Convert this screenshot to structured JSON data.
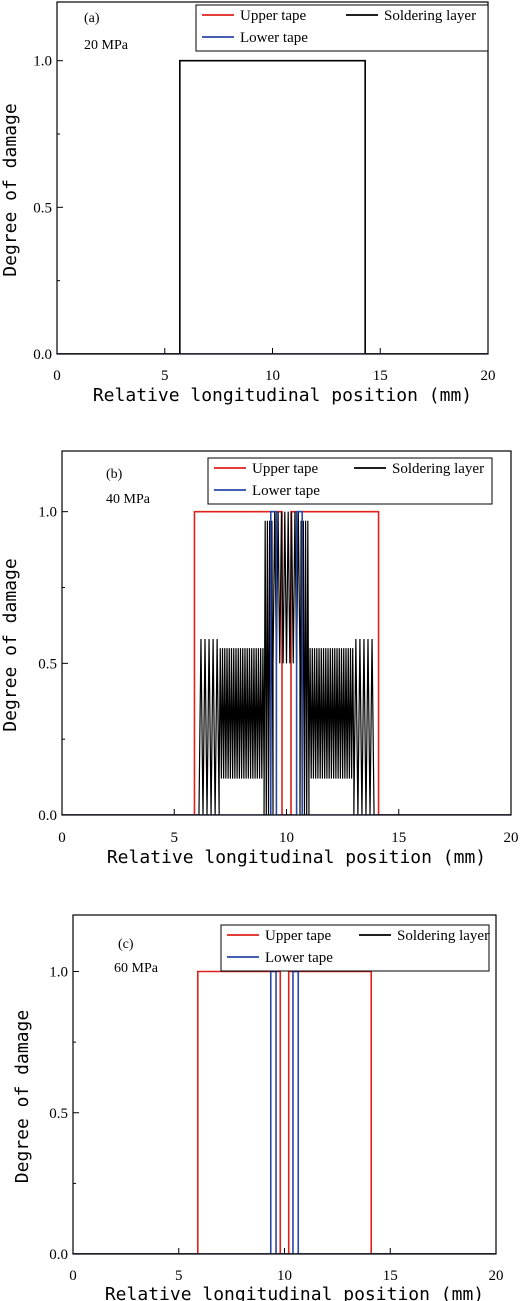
{
  "colors": {
    "upper": "#e0201b",
    "solder": "#000000",
    "lower": "#2a47a8"
  },
  "chart_data": [
    {
      "type": "line",
      "panel_label": "(a)",
      "pressure_label": "20 MPa",
      "xlabel": "Relative longitudinal position (mm)",
      "ylabel": "Degree of damage",
      "xlim": [
        0,
        20
      ],
      "ylim": [
        0,
        1.2
      ],
      "xticks": [
        "0",
        "5",
        "10",
        "15",
        "20"
      ],
      "yticks": [
        "0.0",
        "0.5",
        "1.0"
      ],
      "legend": {
        "placement": "top-right",
        "entries": [
          "Upper tape",
          "Soldering layer",
          "Lower tape"
        ]
      },
      "series": [
        {
          "name": "Upper tape",
          "x": [
            0,
            20
          ],
          "y": [
            0,
            0
          ]
        },
        {
          "name": "Soldering layer",
          "x": [
            0,
            5.7,
            5.7,
            14.3,
            14.3,
            20
          ],
          "y": [
            0,
            0,
            1,
            1,
            0,
            0
          ]
        },
        {
          "name": "Lower tape",
          "x": [
            0,
            20
          ],
          "y": [
            0,
            0
          ]
        }
      ]
    },
    {
      "type": "line",
      "panel_label": "(b)",
      "pressure_label": "40 MPa",
      "xlabel": "Relative longitudinal position (mm)",
      "ylabel": "Degree of damage",
      "xlim": [
        0,
        20
      ],
      "ylim": [
        0,
        1.2
      ],
      "xticks": [
        "0",
        "5",
        "10",
        "15",
        "20"
      ],
      "yticks": [
        "0.0",
        "0.5",
        "1.0"
      ],
      "legend": {
        "placement": "top-right",
        "entries": [
          "Upper tape",
          "Soldering layer",
          "Lower tape"
        ]
      },
      "series": [
        {
          "name": "Upper tape",
          "x": [
            0,
            5.9,
            5.9,
            9.8,
            9.8,
            10.2,
            10.2,
            14.1,
            14.1,
            20
          ],
          "y": [
            0,
            0,
            1,
            1,
            0,
            0,
            1,
            1,
            0,
            0
          ]
        },
        {
          "name": "Soldering layer",
          "oscillation_bands": [
            {
              "x_start": 6.1,
              "x_end": 7.0,
              "y_low": 0.0,
              "y_high": 0.58,
              "cycles": 5
            },
            {
              "x_start": 7.0,
              "x_end": 9.0,
              "y_low": 0.12,
              "y_high": 0.55,
              "cycles": 20
            },
            {
              "x_start": 9.0,
              "x_end": 9.4,
              "y_low": 0.0,
              "y_high": 0.97,
              "cycles": 4
            },
            {
              "x_start": 9.4,
              "x_end": 10.6,
              "y_low": 0.5,
              "y_high": 1.0,
              "cycles": 8
            },
            {
              "x_start": 10.6,
              "x_end": 11.0,
              "y_low": 0.0,
              "y_high": 0.97,
              "cycles": 4
            },
            {
              "x_start": 11.0,
              "x_end": 13.0,
              "y_low": 0.12,
              "y_high": 0.55,
              "cycles": 20
            },
            {
              "x_start": 13.0,
              "x_end": 13.9,
              "y_low": 0.0,
              "y_high": 0.58,
              "cycles": 5
            }
          ]
        },
        {
          "name": "Lower tape",
          "x": [
            0,
            9.3,
            9.3,
            9.55,
            9.55,
            10.45,
            10.45,
            10.7,
            10.7,
            20
          ],
          "y": [
            0,
            0,
            1,
            1,
            0,
            0,
            1,
            1,
            0,
            0
          ]
        }
      ]
    },
    {
      "type": "line",
      "panel_label": "(c)",
      "pressure_label": "60 MPa",
      "xlabel": "Relative longitudinal position (mm)",
      "ylabel": "Degree of damage",
      "xlim": [
        0,
        20
      ],
      "ylim": [
        0,
        1.2
      ],
      "xticks": [
        "0",
        "5",
        "10",
        "15",
        "20"
      ],
      "yticks": [
        "0.0",
        "0.5",
        "1.0"
      ],
      "legend": {
        "placement": "top-right",
        "entries": [
          "Upper tape",
          "Soldering layer",
          "Lower tape"
        ]
      },
      "series": [
        {
          "name": "Upper tape",
          "x": [
            0,
            5.9,
            5.9,
            9.8,
            9.8,
            10.2,
            10.2,
            14.1,
            14.1,
            20
          ],
          "y": [
            0,
            0,
            1,
            1,
            0,
            0,
            1,
            1,
            0,
            0
          ]
        },
        {
          "name": "Soldering layer",
          "x": [
            0,
            20
          ],
          "y": [
            0,
            0
          ]
        },
        {
          "name": "Lower tape",
          "x": [
            0,
            9.35,
            9.35,
            9.6,
            9.6,
            10.4,
            10.4,
            10.65,
            10.65,
            20
          ],
          "y": [
            0,
            0,
            1,
            1,
            0,
            0,
            1,
            1,
            0,
            0
          ]
        }
      ]
    }
  ]
}
